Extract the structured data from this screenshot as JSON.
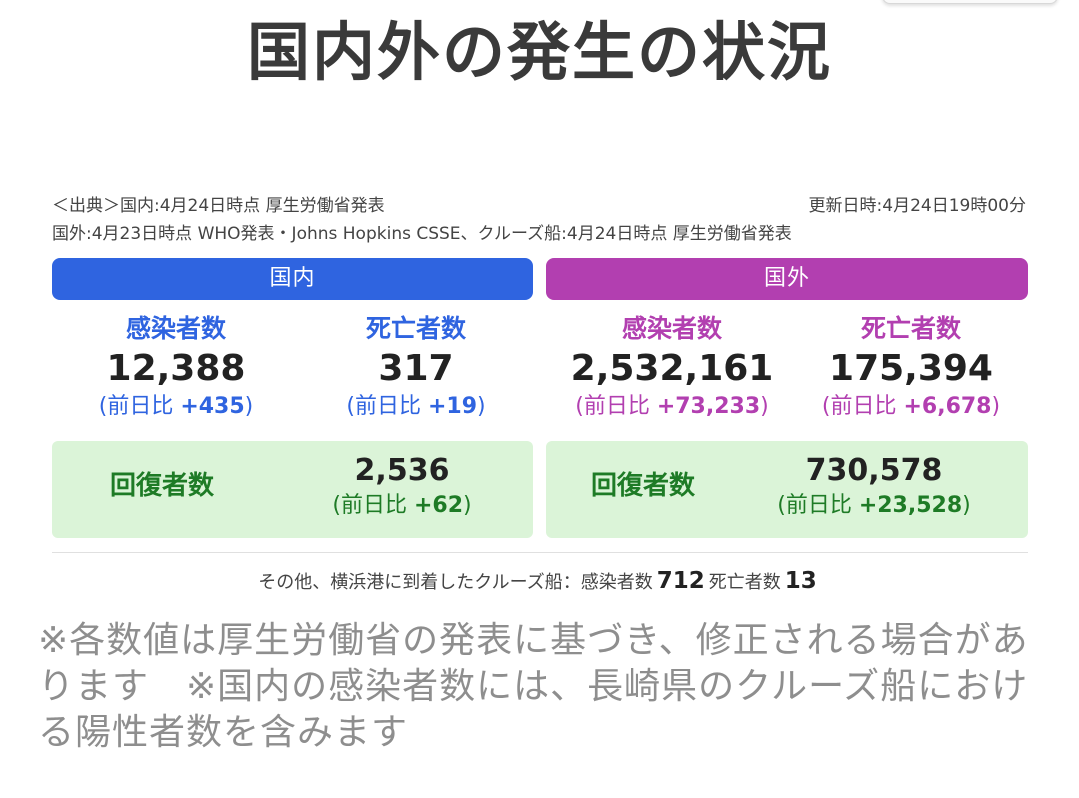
{
  "title": "国内外の発生の状況",
  "source": {
    "line1": "＜出典＞国内:4月24日時点 厚生労働省発表",
    "line2": "国外:4月23日時点 WHO発表・Johns Hopkins CSSE、クルーズ船:4月24日時点 厚生労働省発表",
    "updated": "更新日時:4月24日19時00分"
  },
  "domestic": {
    "header": "国内",
    "infected": {
      "label": "感染者数",
      "value": "12,388",
      "diff_prefix": "(前日比 ",
      "diff": "+435",
      "diff_suffix": ")"
    },
    "deaths": {
      "label": "死亡者数",
      "value": "317",
      "diff_prefix": "(前日比 ",
      "diff": "+19",
      "diff_suffix": ")"
    },
    "recovered": {
      "label": "回復者数",
      "value": "2,536",
      "diff_prefix": "(前日比 ",
      "diff": "+62",
      "diff_suffix": ")"
    }
  },
  "overseas": {
    "header": "国外",
    "infected": {
      "label": "感染者数",
      "value": "2,532,161",
      "diff_prefix": "(前日比 ",
      "diff": "+73,233",
      "diff_suffix": ")"
    },
    "deaths": {
      "label": "死亡者数",
      "value": "175,394",
      "diff_prefix": "(前日比 ",
      "diff": "+6,678",
      "diff_suffix": ")"
    },
    "recovered": {
      "label": "回復者数",
      "value": "730,578",
      "diff_prefix": "(前日比 ",
      "diff": "+23,528",
      "diff_suffix": ")"
    }
  },
  "cruise": {
    "text": "その他、横浜港に到着したクルーズ船：",
    "infected_label": "感染者数",
    "infected_value": "712",
    "deaths_label": "死亡者数",
    "deaths_value": "13"
  },
  "note": "※各数値は厚生労働省の発表に基づき、修正される場合があります　※国内の感染者数には、長崎県のクルーズ船における陽性者数を含みます",
  "colors": {
    "domestic": "#2f64e0",
    "overseas": "#b23fb0",
    "recovered_bg": "#dbf4d8",
    "recovered_text": "#1e7b26"
  }
}
